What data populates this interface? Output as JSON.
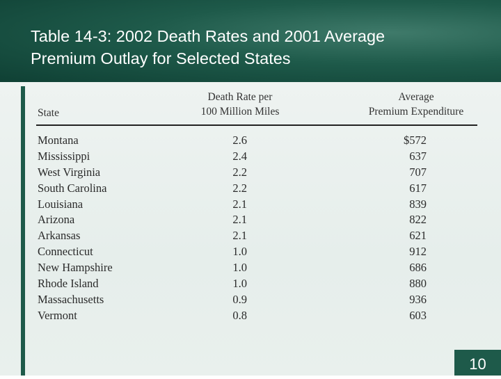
{
  "slide": {
    "title_line1": "Table 14-3:  2002 Death Rates and 2001 Average",
    "title_line2": "Premium Outlay for Selected States",
    "slide_number": "10"
  },
  "table": {
    "headers": {
      "state": "State",
      "death_line1": "Death Rate per",
      "death_line2": "100 Million Miles",
      "prem_line1": "Average",
      "prem_line2": "Premium Expenditure"
    },
    "rows": [
      {
        "state": "Montana",
        "death_rate": "2.6",
        "premium": "$572"
      },
      {
        "state": "Mississippi",
        "death_rate": "2.4",
        "premium": "637"
      },
      {
        "state": "West Virginia",
        "death_rate": "2.2",
        "premium": "707"
      },
      {
        "state": "South Carolina",
        "death_rate": "2.2",
        "premium": "617"
      },
      {
        "state": "Louisiana",
        "death_rate": "2.1",
        "premium": "839"
      },
      {
        "state": "Arizona",
        "death_rate": "2.1",
        "premium": "822"
      },
      {
        "state": "Arkansas",
        "death_rate": "2.1",
        "premium": "621"
      },
      {
        "state": "Connecticut",
        "death_rate": "1.0",
        "premium": "912"
      },
      {
        "state": "New Hampshire",
        "death_rate": "1.0",
        "premium": "686"
      },
      {
        "state": "Rhode Island",
        "death_rate": "1.0",
        "premium": "880"
      },
      {
        "state": "Massachusetts",
        "death_rate": "0.9",
        "premium": "936"
      },
      {
        "state": "Vermont",
        "death_rate": "0.8",
        "premium": "603"
      }
    ]
  },
  "colors": {
    "header_bg": "#1e5a4a",
    "accent": "#1e5a4a",
    "content_bg": "#e9f0ed"
  }
}
